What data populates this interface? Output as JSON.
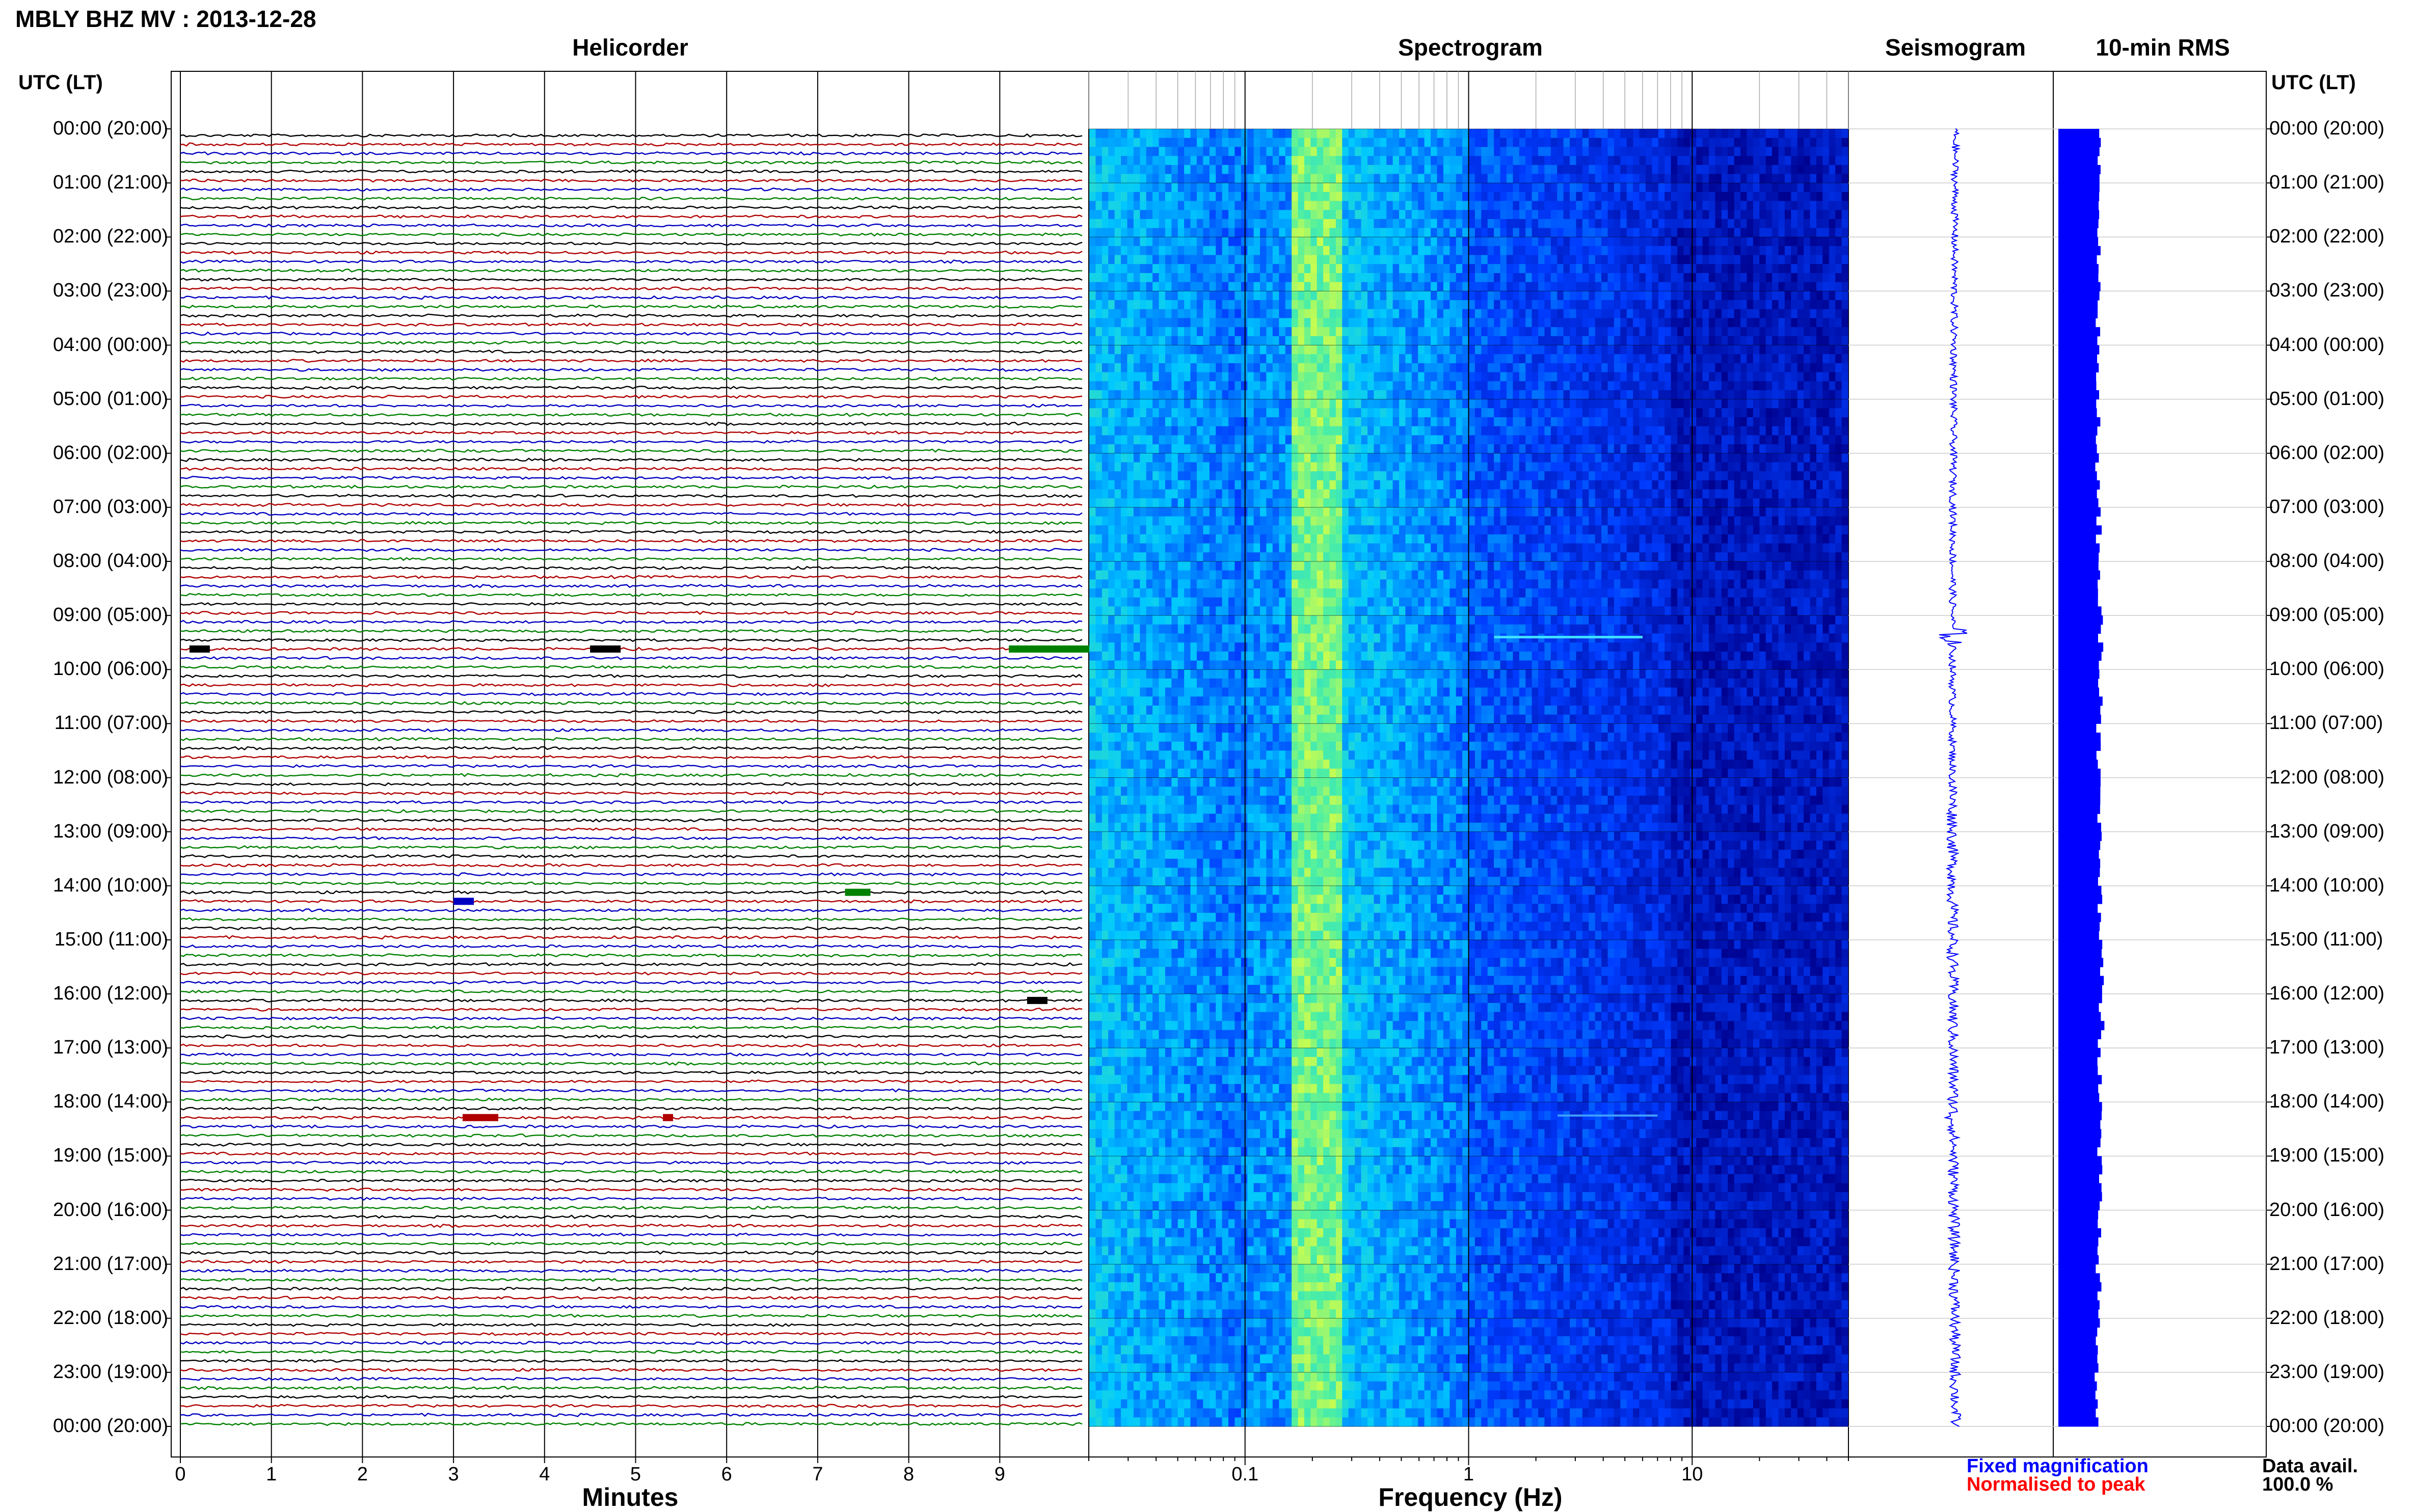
{
  "header": {
    "title": "MBLY BHZ MV : 2013-12-28",
    "utc_label_left": "UTC (LT)",
    "utc_label_right": "UTC (LT)"
  },
  "panels": {
    "helicorder": "Helicorder",
    "spectrogram": "Spectrogram",
    "seismogram": "Seismogram",
    "rms": "10-min RMS"
  },
  "axes": {
    "helicorder_xlabel": "Minutes",
    "spectrogram_xlabel": "Frequency (Hz)",
    "helicorder_ticks": [
      "0",
      "1",
      "2",
      "3",
      "4",
      "5",
      "6",
      "7",
      "8",
      "9"
    ],
    "spectrogram_ticks": [
      "0.1",
      "1",
      "10"
    ]
  },
  "time_labels": [
    "00:00 (20:00)",
    "01:00 (21:00)",
    "02:00 (22:00)",
    "03:00 (23:00)",
    "04:00 (00:00)",
    "05:00 (01:00)",
    "06:00 (02:00)",
    "07:00 (03:00)",
    "08:00 (04:00)",
    "09:00 (05:00)",
    "10:00 (06:00)",
    "11:00 (07:00)",
    "12:00 (08:00)",
    "13:00 (09:00)",
    "14:00 (10:00)",
    "15:00 (11:00)",
    "16:00 (12:00)",
    "17:00 (13:00)",
    "18:00 (14:00)",
    "19:00 (15:00)",
    "20:00 (16:00)",
    "21:00 (17:00)",
    "22:00 (18:00)",
    "23:00 (19:00)",
    "00:00 (20:00)"
  ],
  "legend": {
    "fixed": "Fixed magnification",
    "normalised": "Normalised to peak",
    "data_avail_label": "Data avail.",
    "data_avail_value": "100.0 %"
  },
  "colors": {
    "trace_cycle": [
      "#000000",
      "#b00000",
      "#0000c0",
      "#008000"
    ],
    "legend_fixed": "#0000ff",
    "legend_normalised": "#ff0000",
    "rms_bar": "#0000ff",
    "spectrogram_low": "#0000a0",
    "spectrogram_high": "#e0ff40"
  },
  "chart_data": [
    {
      "type": "line",
      "title": "Helicorder",
      "xlabel": "Minutes",
      "xlim": [
        0,
        10
      ],
      "rows": 144,
      "row_minutes": 10,
      "events_utc": [
        {
          "time": "09:30",
          "minute": 0.1
        },
        {
          "time": "09:30",
          "minute": 9.1
        },
        {
          "time": "14:00",
          "minute": 3.0
        },
        {
          "time": "18:00",
          "minute": 3.1
        },
        {
          "time": "18:00",
          "minute": 5.3
        }
      ]
    },
    {
      "type": "heatmap",
      "title": "Spectrogram",
      "xlabel": "Frequency (Hz)",
      "xscale": "log",
      "xlim": [
        0.02,
        50
      ],
      "ylim": [
        "00:00",
        "00:00"
      ],
      "peak_band_hz": 0.2
    },
    {
      "type": "line",
      "title": "Seismogram",
      "ylim": [
        "00:00",
        "00:00"
      ]
    },
    {
      "type": "bar",
      "title": "10-min RMS",
      "orientation": "horizontal",
      "bins": 144,
      "relative_values_by_hour": [
        0.9,
        0.75,
        0.8,
        0.7,
        0.7,
        0.75,
        0.7,
        0.8,
        0.85,
        1.0,
        0.95,
        0.8,
        0.85,
        0.9,
        0.95,
        1.0,
        1.0,
        0.95,
        1.0,
        0.9,
        0.85,
        0.8,
        0.75,
        0.7
      ]
    }
  ]
}
